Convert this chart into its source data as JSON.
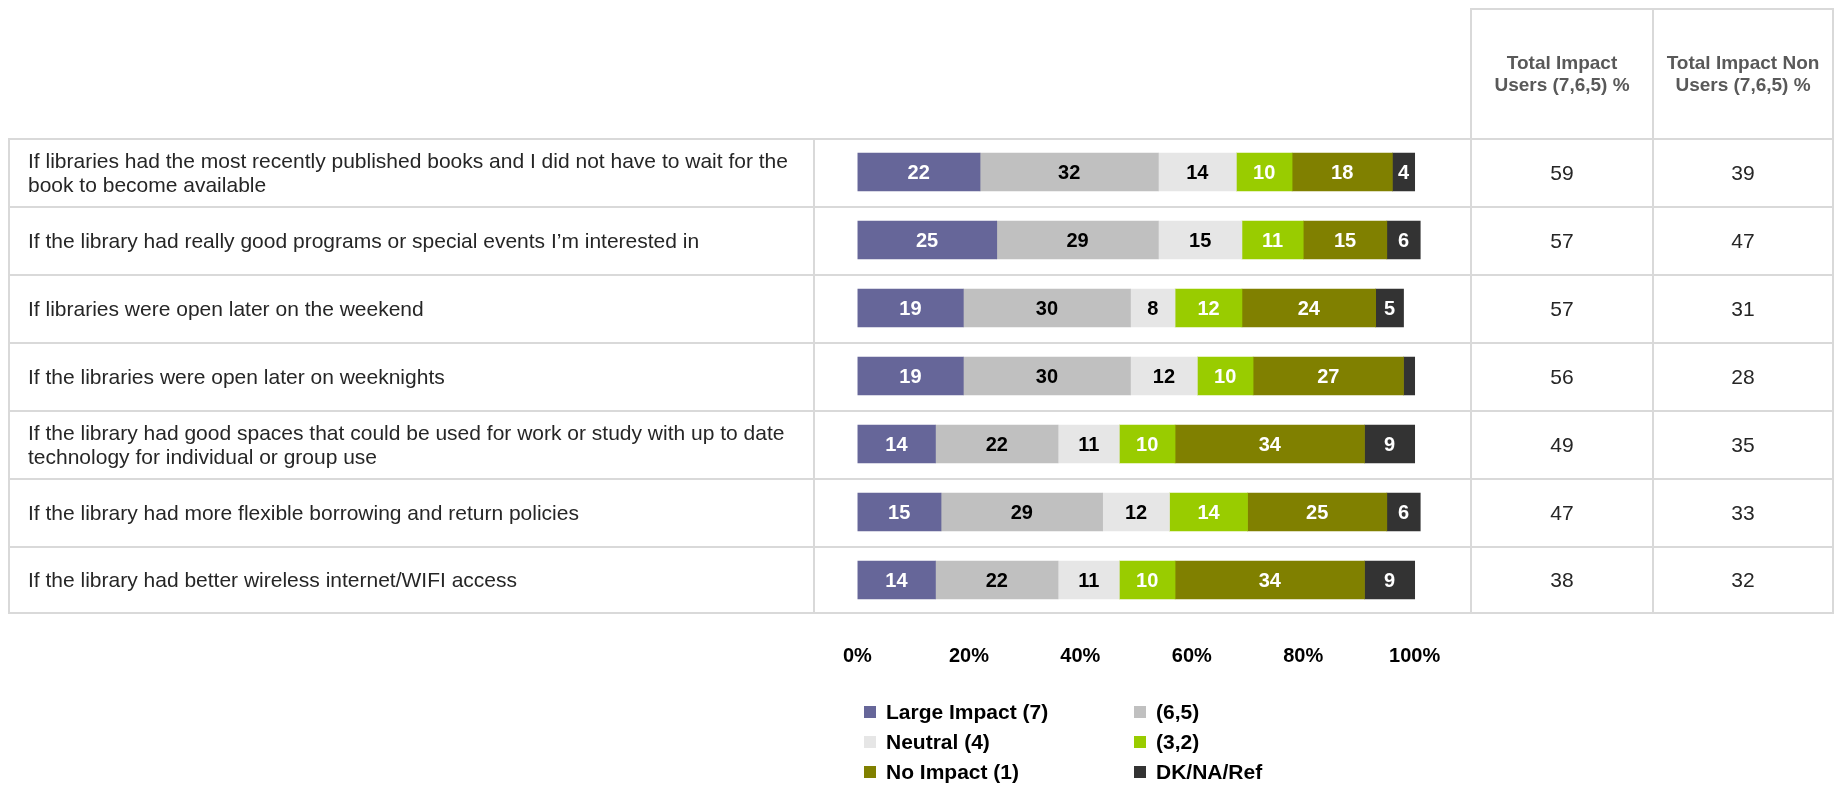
{
  "chart_data": {
    "type": "bar",
    "orientation": "horizontal",
    "stacked": true,
    "legend": "bottom",
    "grid": false,
    "categories": [
      "If libraries had the most recently published books and I did not have to wait for the book to become available",
      "If the library had really good programs or special events I’m interested in",
      "If libraries were open later on the weekend",
      "If the libraries were open later on weeknights",
      "If the library had good spaces that could be used for work or study with up to date technology for individual or group use",
      "If the library had more flexible borrowing and return policies",
      "If the library had better wireless internet/WIFI access"
    ],
    "xlim": [
      0,
      102
    ],
    "xticks": [
      {
        "value": 0,
        "label": "0%"
      },
      {
        "value": 20,
        "label": "20%"
      },
      {
        "value": 40,
        "label": "40%"
      },
      {
        "value": 60,
        "label": "60%"
      },
      {
        "value": 80,
        "label": "80%"
      },
      {
        "value": 100,
        "label": "100%"
      }
    ],
    "series": [
      {
        "name": "Large Impact (7)",
        "color": "#666699",
        "values": [
          22,
          25,
          19,
          19,
          14,
          15,
          14
        ],
        "value_labels": [
          "22",
          "25",
          "19",
          "19",
          "14",
          "15",
          "14"
        ]
      },
      {
        "name": "(6,5)",
        "color": "#c0c0c0",
        "values": [
          32,
          29,
          30,
          30,
          22,
          29,
          22
        ],
        "value_labels": [
          "32",
          "29",
          "30",
          "30",
          "22",
          "29",
          "22"
        ]
      },
      {
        "name": "Neutral (4)",
        "color": "#e6e6e6",
        "values": [
          14,
          15,
          8,
          12,
          11,
          12,
          11
        ],
        "value_labels": [
          "14",
          "15",
          "8",
          "12",
          "11",
          "12",
          "11"
        ]
      },
      {
        "name": "(3,2)",
        "color": "#99cc00",
        "values": [
          10,
          11,
          12,
          10,
          10,
          14,
          10
        ],
        "value_labels": [
          "10",
          "11",
          "12",
          "10",
          "10",
          "14",
          "10"
        ]
      },
      {
        "name": "No Impact (1)",
        "color": "#808000",
        "values": [
          18,
          15,
          24,
          27,
          34,
          25,
          34
        ],
        "value_labels": [
          "18",
          "15",
          "24",
          "27",
          "34",
          "25",
          "34"
        ]
      },
      {
        "name": "DK/NA/Ref",
        "color": "#333333",
        "values": [
          4,
          6,
          5,
          2,
          9,
          6,
          9
        ],
        "value_labels": [
          "4",
          "6",
          "5",
          null,
          "9",
          "6",
          "9"
        ]
      }
    ],
    "annotations": [
      "Total Impact Users  (7,6,5) %",
      "Total Impact Non Users (7,6,5) %",
      "59",
      "39",
      "57",
      "47",
      "57",
      "31",
      "56",
      "28",
      "49",
      "35",
      "47",
      "33",
      "38",
      "32"
    ]
  }
}
